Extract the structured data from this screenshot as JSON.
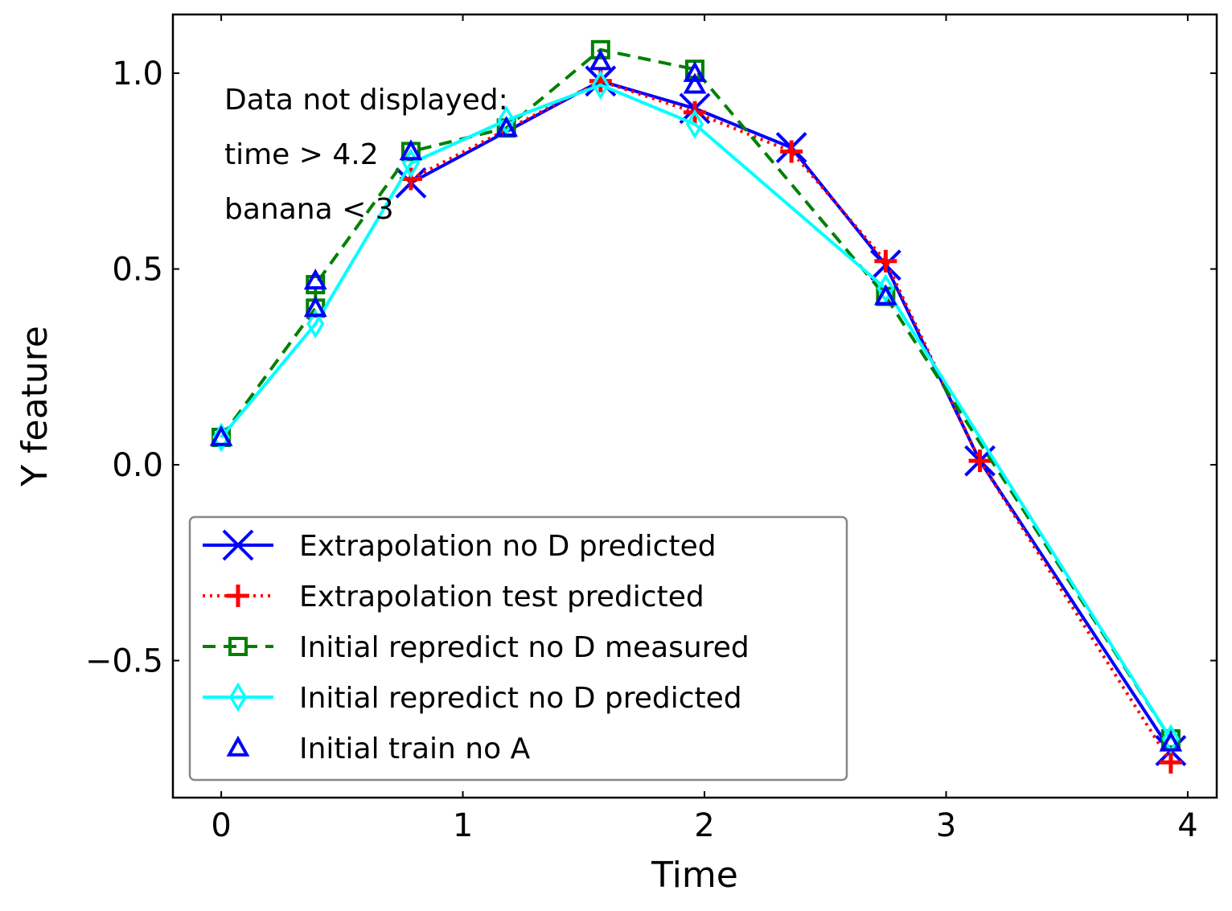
{
  "chart_data": {
    "type": "line",
    "xlabel": "Time",
    "ylabel": "Y feature",
    "xlim": [
      -0.2,
      4.12
    ],
    "ylim": [
      -0.85,
      1.15
    ],
    "xticks": [
      0,
      1,
      2,
      3,
      4
    ],
    "xtick_labels": [
      "0",
      "1",
      "2",
      "3",
      "4"
    ],
    "yticks": [
      -0.5,
      0.0,
      0.5,
      1.0
    ],
    "ytick_labels": [
      "−0.5",
      "0.0",
      "0.5",
      "1.0"
    ],
    "grid": false,
    "legend_position": "lower-left",
    "annotations": [
      "Data not displayed:",
      "time > 4.2",
      "banana < 3"
    ],
    "series": [
      {
        "name": "Extrapolation no D predicted",
        "color": "#0000ff",
        "marker": "x",
        "linestyle": "solid",
        "x": [
          0.785,
          1.57,
          1.96,
          2.36,
          2.75,
          3.14,
          3.93
        ],
        "y": [
          0.72,
          0.98,
          0.91,
          0.81,
          0.51,
          0.01,
          -0.73
        ]
      },
      {
        "name": "Extrapolation test predicted",
        "color": "#ff0000",
        "marker": "+",
        "linestyle": "dotted",
        "x": [
          0.785,
          1.57,
          1.96,
          2.36,
          2.75,
          3.14,
          3.93
        ],
        "y": [
          0.73,
          0.98,
          0.9,
          0.8,
          0.52,
          0.01,
          -0.76
        ]
      },
      {
        "name": "Initial repredict no D measured",
        "color": "#008000",
        "marker": "square",
        "linestyle": "dashed",
        "x": [
          0.0,
          0.39,
          0.39,
          0.785,
          1.18,
          1.57,
          1.96,
          2.75,
          3.93
        ],
        "y": [
          0.07,
          0.4,
          0.46,
          0.8,
          0.86,
          1.06,
          1.01,
          0.43,
          -0.7
        ]
      },
      {
        "name": "Initial repredict no D predicted",
        "color": "#00ffff",
        "marker": "thin-diamond",
        "linestyle": "solid",
        "x": [
          0.0,
          0.39,
          0.785,
          1.18,
          1.57,
          1.96,
          2.75,
          3.93
        ],
        "y": [
          0.07,
          0.36,
          0.77,
          0.88,
          0.97,
          0.87,
          0.45,
          -0.7
        ]
      },
      {
        "name": "Initial train no A",
        "color": "#0000ff",
        "marker": "triangle",
        "linestyle": "none",
        "x": [
          0.0,
          0.39,
          0.39,
          0.785,
          1.18,
          1.57,
          1.96,
          1.96,
          2.75,
          3.93
        ],
        "y": [
          0.07,
          0.4,
          0.47,
          0.8,
          0.86,
          1.03,
          0.97,
          1.0,
          0.43,
          -0.71
        ]
      }
    ]
  }
}
